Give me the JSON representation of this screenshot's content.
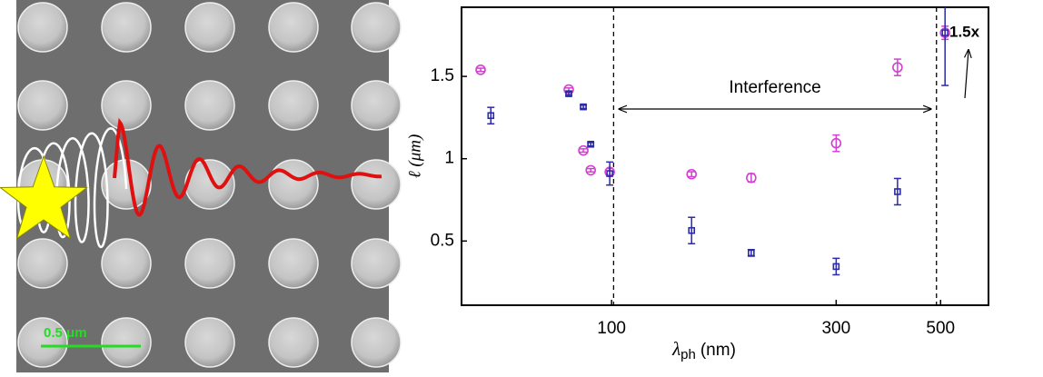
{
  "image": {
    "scale_bar": "0.5 μm"
  },
  "chart_data": {
    "type": "errorbar-scatter",
    "x_label": "λ",
    "x_label_sub": "ph",
    "x_label_unit": "(nm)",
    "y_label": "ℓ (μm)",
    "annotations": [
      "Interference",
      "1.5x"
    ],
    "reference_lines": [
      101,
      490
    ],
    "xscale": "log",
    "xlim": [
      48,
      632
    ],
    "xticks": [
      100,
      300,
      500
    ],
    "ylim": [
      0.11,
      1.92
    ],
    "yticks": [
      0.5,
      1,
      1.5
    ],
    "series": [
      {
        "name": "circles",
        "marker": "circle",
        "color": "#d23fd2",
        "x": [
          52.7,
          81.1,
          87.1,
          90.3,
          99.1,
          147.9,
          198,
          300,
          405,
          511
        ],
        "values": [
          1.54,
          1.42,
          1.05,
          0.93,
          0.92,
          0.906,
          0.884,
          1.094,
          1.555,
          1.765
        ],
        "errors": [
          0.01,
          0.01,
          0.01,
          0.01,
          0.02,
          0.015,
          0.025,
          0.05,
          0.05,
          0.04
        ]
      },
      {
        "name": "squares",
        "marker": "square",
        "color": "#2a2aa8",
        "x": [
          55.4,
          81.1,
          87.1,
          90.3,
          99.1,
          147.9,
          198,
          300,
          405,
          511
        ],
        "values": [
          1.262,
          1.395,
          1.315,
          1.088,
          0.91,
          0.564,
          0.428,
          0.345,
          0.8,
          1.765
        ],
        "errors": [
          0.05,
          0.01,
          0.01,
          0.01,
          0.07,
          0.08,
          0.02,
          0.05,
          0.08,
          0.32
        ]
      }
    ]
  }
}
